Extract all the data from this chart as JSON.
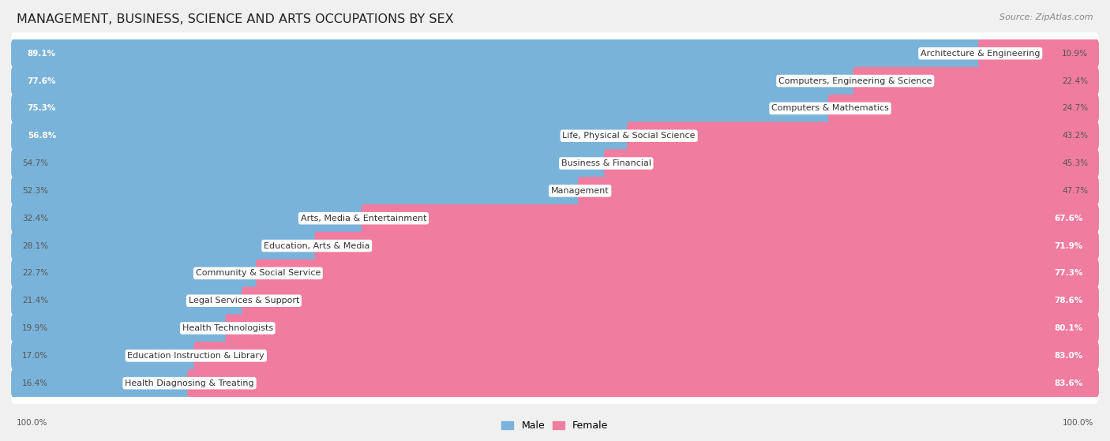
{
  "title": "MANAGEMENT, BUSINESS, SCIENCE AND ARTS OCCUPATIONS BY SEX",
  "source": "Source: ZipAtlas.com",
  "categories": [
    "Architecture & Engineering",
    "Computers, Engineering & Science",
    "Computers & Mathematics",
    "Life, Physical & Social Science",
    "Business & Financial",
    "Management",
    "Arts, Media & Entertainment",
    "Education, Arts & Media",
    "Community & Social Service",
    "Legal Services & Support",
    "Health Technologists",
    "Education Instruction & Library",
    "Health Diagnosing & Treating"
  ],
  "male": [
    89.1,
    77.6,
    75.3,
    56.8,
    54.7,
    52.3,
    32.4,
    28.1,
    22.7,
    21.4,
    19.9,
    17.0,
    16.4
  ],
  "female": [
    10.9,
    22.4,
    24.7,
    43.2,
    45.3,
    47.7,
    67.6,
    71.9,
    77.3,
    78.6,
    80.1,
    83.0,
    83.6
  ],
  "male_color": "#7ab3d9",
  "female_color": "#f07ca0",
  "bg_color": "#f0f0f0",
  "row_bg_color": "#ffffff",
  "title_fontsize": 11.5,
  "label_fontsize": 8,
  "pct_fontsize": 7.5,
  "legend_fontsize": 9,
  "source_fontsize": 8
}
